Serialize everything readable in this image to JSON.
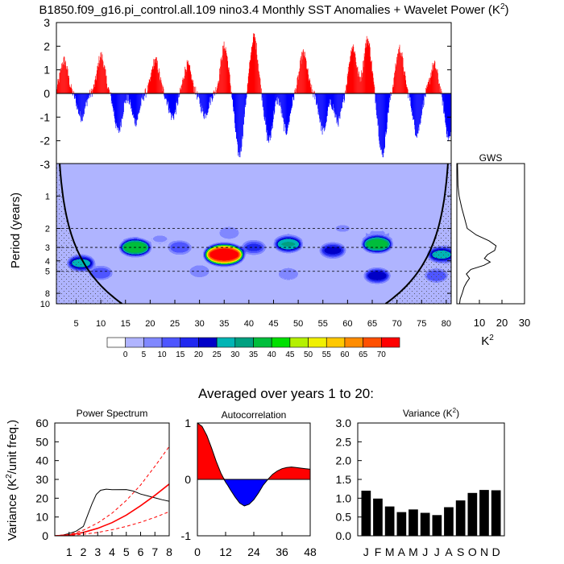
{
  "title": "B1850.f09_g16.pi_control.all.109 nino3.4 Monthly SST Anomalies + Wavelet Power (K",
  "title_sup": "2",
  "title_close": ")",
  "chart_data": [
    {
      "id": "anomaly",
      "type": "area",
      "ylim": [
        -3,
        3
      ],
      "yticks": [
        "3",
        "2",
        "1",
        "0",
        "-1",
        "-2",
        "-3"
      ],
      "xlim": [
        1,
        81
      ],
      "positive_color": "#ff0000",
      "negative_color": "#0000ff"
    },
    {
      "id": "wavelet",
      "type": "heatmap",
      "ylabel": "Period (years)",
      "yticks": [
        "1",
        "2",
        "3",
        "4",
        "5",
        "8",
        "10"
      ],
      "xticks": [
        "5",
        "10",
        "15",
        "20",
        "25",
        "30",
        "35",
        "40",
        "45",
        "50",
        "55",
        "60",
        "65",
        "70",
        "75",
        "80"
      ],
      "xlim": [
        1,
        81
      ],
      "period_range": [
        0.5,
        10
      ],
      "dashed_periods": [
        2,
        3,
        5
      ],
      "hotspots": [
        {
          "year": 35,
          "period": 3.5,
          "power": 72
        },
        {
          "year": 17,
          "period": 3.0,
          "power": 42
        },
        {
          "year": 66,
          "period": 2.8,
          "power": 40
        },
        {
          "year": 48,
          "period": 2.8,
          "power": 33
        },
        {
          "year": 57,
          "period": 3.2,
          "power": 25
        },
        {
          "year": 79,
          "period": 3.5,
          "power": 30
        },
        {
          "year": 6,
          "period": 4.2,
          "power": 30
        },
        {
          "year": 66,
          "period": 5.5,
          "power": 26
        },
        {
          "year": 41,
          "period": 3.0,
          "power": 20
        },
        {
          "year": 26,
          "period": 3.0,
          "power": 18
        },
        {
          "year": 30,
          "period": 5.0,
          "power": 12
        },
        {
          "year": 10,
          "period": 5.2,
          "power": 18
        },
        {
          "year": 48,
          "period": 5.3,
          "power": 12
        },
        {
          "year": 36,
          "period": 2.2,
          "power": 12
        },
        {
          "year": 59,
          "period": 2.0,
          "power": 10
        },
        {
          "year": 78,
          "period": 5.5,
          "power": 18
        },
        {
          "year": 22,
          "period": 2.5,
          "power": 10
        },
        {
          "year": 73,
          "period": 2.0,
          "power": 8
        }
      ]
    },
    {
      "id": "gws",
      "type": "line",
      "title": "GWS",
      "xlabel": "K",
      "xlabel_sup": "2",
      "xticks": [
        "10",
        "20",
        "30"
      ],
      "xlim": [
        0,
        30
      ],
      "period": [
        0.5,
        0.8,
        1.0,
        1.3,
        1.6,
        2.0,
        2.3,
        2.6,
        2.9,
        3.2,
        3.5,
        3.8,
        4.1,
        4.4,
        4.8,
        5.3,
        5.8,
        6.3,
        7.0,
        8.0,
        9.0,
        10.0
      ],
      "power": [
        0.3,
        0.5,
        1.0,
        2.2,
        3.4,
        4.6,
        8.6,
        14.2,
        17.4,
        16.8,
        13.6,
        12.2,
        14.8,
        12.0,
        6.2,
        4.2,
        5.6,
        4.4,
        3.2,
        2.4,
        1.5,
        1.2
      ]
    },
    {
      "id": "colorbar",
      "type": "heatmap",
      "labels": [
        "0",
        "5",
        "10",
        "15",
        "20",
        "25",
        "30",
        "35",
        "40",
        "45",
        "50",
        "55",
        "60",
        "65",
        "70"
      ],
      "colors": [
        "#ffffff",
        "#b0b4ff",
        "#8088ff",
        "#4e56ff",
        "#2028f0",
        "#0000c8",
        "#00b4b4",
        "#00a080",
        "#00be3c",
        "#00e000",
        "#b4f000",
        "#f0f000",
        "#ffc800",
        "#ff8c00",
        "#ff5000",
        "#ff0000"
      ]
    },
    {
      "id": "power_spectrum",
      "type": "line",
      "title": "Power Spectrum",
      "ylabel": "Variance (K",
      "ylabel_sup": "2",
      "ylabel_end": "/unit freq.)",
      "ylim": [
        0,
        60
      ],
      "yticks": [
        "0",
        "10",
        "20",
        "30",
        "40",
        "50",
        "60"
      ],
      "xlim": [
        0,
        8
      ],
      "xticks": [
        "1",
        "2",
        "3",
        "4",
        "5",
        "6",
        "7",
        "8"
      ],
      "series": [
        {
          "color": "#000000",
          "x": [
            0,
            0.5,
            1.0,
            1.5,
            2.0,
            2.3,
            2.6,
            2.9,
            3.2,
            3.6,
            4.0,
            5.0,
            5.5,
            6.0,
            6.5,
            7.0,
            7.5,
            8.0
          ],
          "y": [
            0,
            0.3,
            1.2,
            2.5,
            5,
            11,
            17,
            22,
            24.2,
            24.8,
            24.5,
            24.6,
            23.8,
            22.2,
            21.2,
            20.2,
            19.2,
            18.4
          ]
        },
        {
          "color": "#ff0000",
          "width": 1.6,
          "x": [
            0,
            1,
            2,
            3,
            4,
            5,
            6,
            7,
            8
          ],
          "y": [
            0,
            0.4,
            1.8,
            4,
            7,
            11,
            16,
            21.5,
            27.5
          ]
        },
        {
          "color": "#ff0000",
          "dashed": true,
          "x": [
            0,
            1,
            2,
            3,
            4,
            5,
            6,
            7,
            8
          ],
          "y": [
            0,
            0.7,
            3,
            6.8,
            12,
            18.8,
            27,
            37,
            47.5
          ]
        },
        {
          "color": "#ff0000",
          "dashed": true,
          "x": [
            0,
            1,
            2,
            3,
            4,
            5,
            6,
            7,
            8
          ],
          "y": [
            0,
            0.2,
            0.8,
            1.8,
            3.2,
            5,
            7.2,
            9.8,
            12.8
          ]
        }
      ]
    },
    {
      "id": "autocorrelation",
      "type": "area",
      "title": "Autocorrelation",
      "ylim": [
        -1,
        1
      ],
      "yticks": [
        "1",
        "0",
        "-1"
      ],
      "xlim": [
        0,
        48
      ],
      "xticks": [
        "0",
        "12",
        "24",
        "36",
        "48"
      ],
      "x": [
        0,
        2,
        4,
        6,
        8,
        10,
        11,
        12,
        13,
        14,
        16,
        18,
        20,
        22,
        24,
        26,
        27,
        28,
        30,
        32,
        34,
        36,
        38,
        40,
        42,
        44,
        46,
        48
      ],
      "y": [
        1.0,
        0.94,
        0.78,
        0.56,
        0.32,
        0.11,
        0.03,
        -0.05,
        -0.11,
        -0.18,
        -0.31,
        -0.42,
        -0.47,
        -0.44,
        -0.36,
        -0.24,
        -0.17,
        -0.1,
        0.0,
        0.09,
        0.15,
        0.19,
        0.21,
        0.22,
        0.21,
        0.2,
        0.19,
        0.18
      ],
      "positive_color": "#ff0000",
      "negative_color": "#0000ff"
    },
    {
      "id": "variance",
      "type": "bar",
      "title": "Variance (K",
      "title_sup": "2",
      "title_close": ")",
      "categories": [
        "J",
        "F",
        "M",
        "A",
        "M",
        "J",
        "J",
        "A",
        "S",
        "O",
        "N",
        "D"
      ],
      "values": [
        1.2,
        0.99,
        0.78,
        0.63,
        0.7,
        0.61,
        0.55,
        0.76,
        0.94,
        1.14,
        1.22,
        1.21
      ],
      "ylim": [
        0,
        3.0
      ],
      "yticks": [
        "0.0",
        "0.5",
        "1.0",
        "1.5",
        "2.0",
        "2.5",
        "3.0"
      ]
    }
  ],
  "averaged_title": "Averaged over years 1 to 20:"
}
